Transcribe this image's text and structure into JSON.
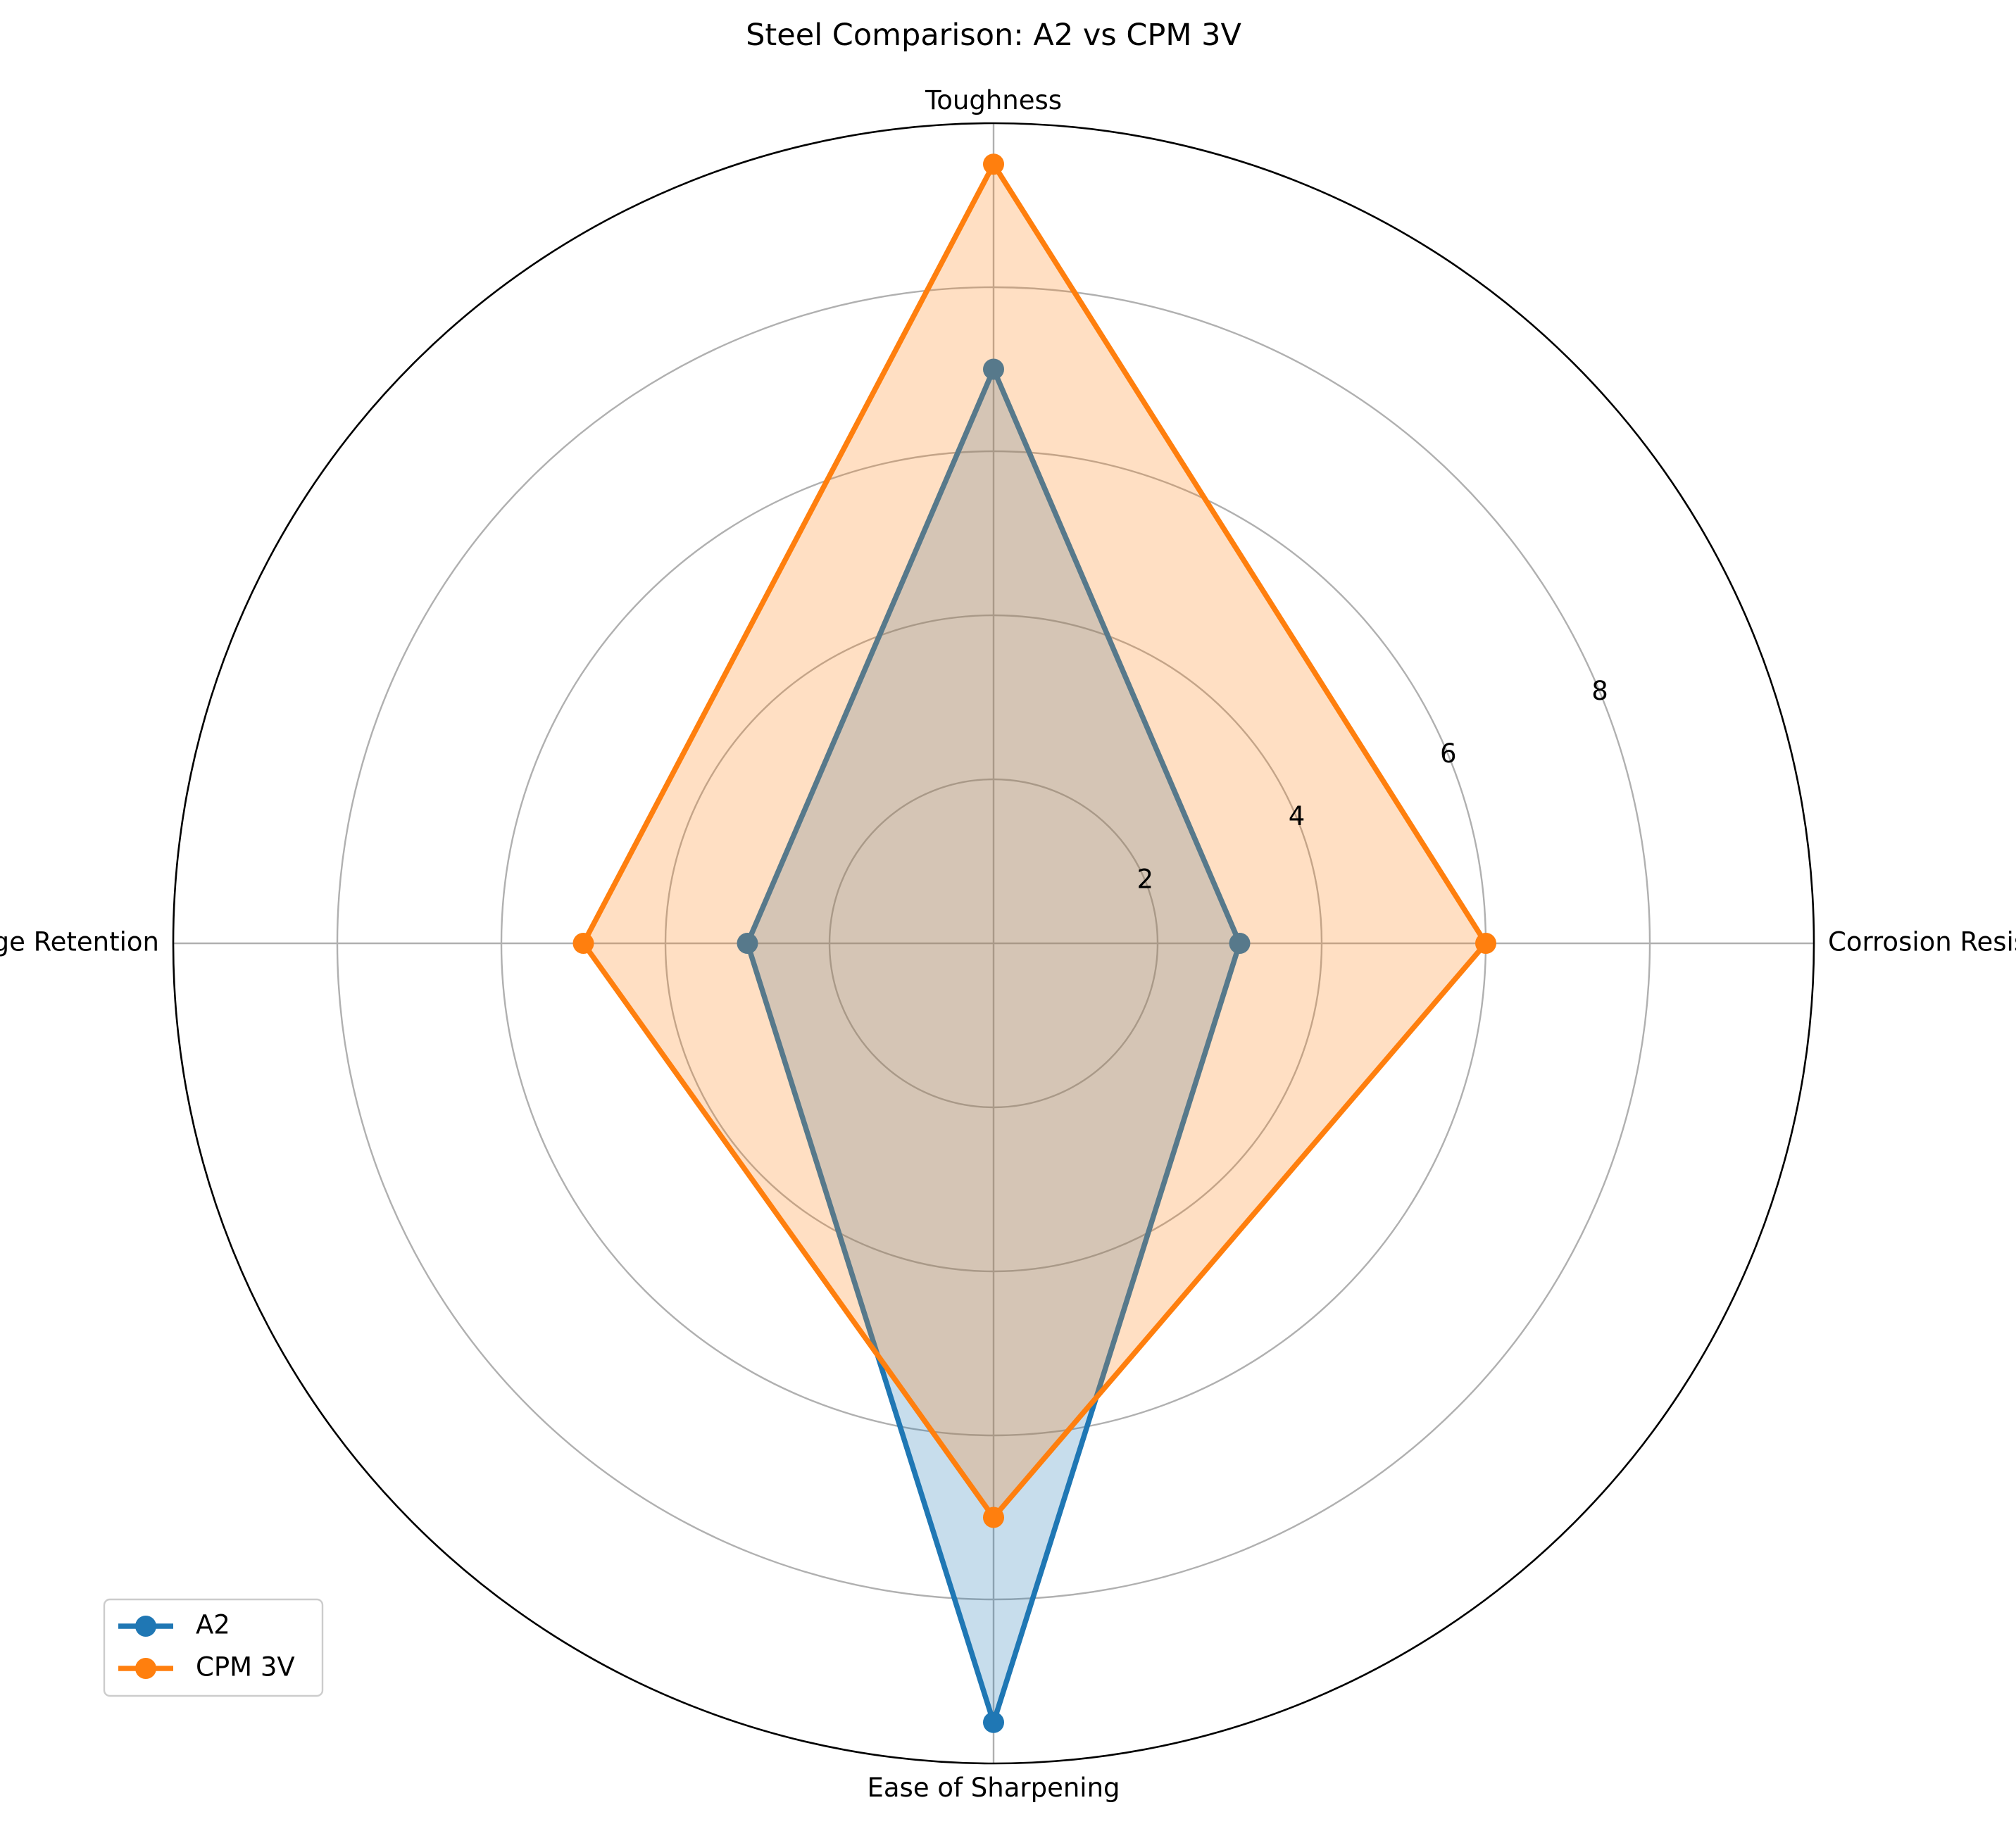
{
  "chart_data": {
    "type": "radar",
    "title": "Steel Comparison: A2 vs CPM 3V",
    "categories": [
      "Corrosion Resistance",
      "Toughness",
      "Edge Retention",
      "Ease of Sharpening"
    ],
    "series": [
      {
        "name": "A2",
        "values": [
          3,
          7,
          3,
          9.5
        ],
        "color": "#1f77b4"
      },
      {
        "name": "CPM 3V",
        "values": [
          6,
          9.5,
          5,
          7
        ],
        "color": "#ff7f0e"
      }
    ],
    "rlim": [
      0,
      10
    ],
    "r_ticks": [
      2,
      4,
      6,
      8
    ],
    "grid": true,
    "legend_position": "lower-left"
  }
}
